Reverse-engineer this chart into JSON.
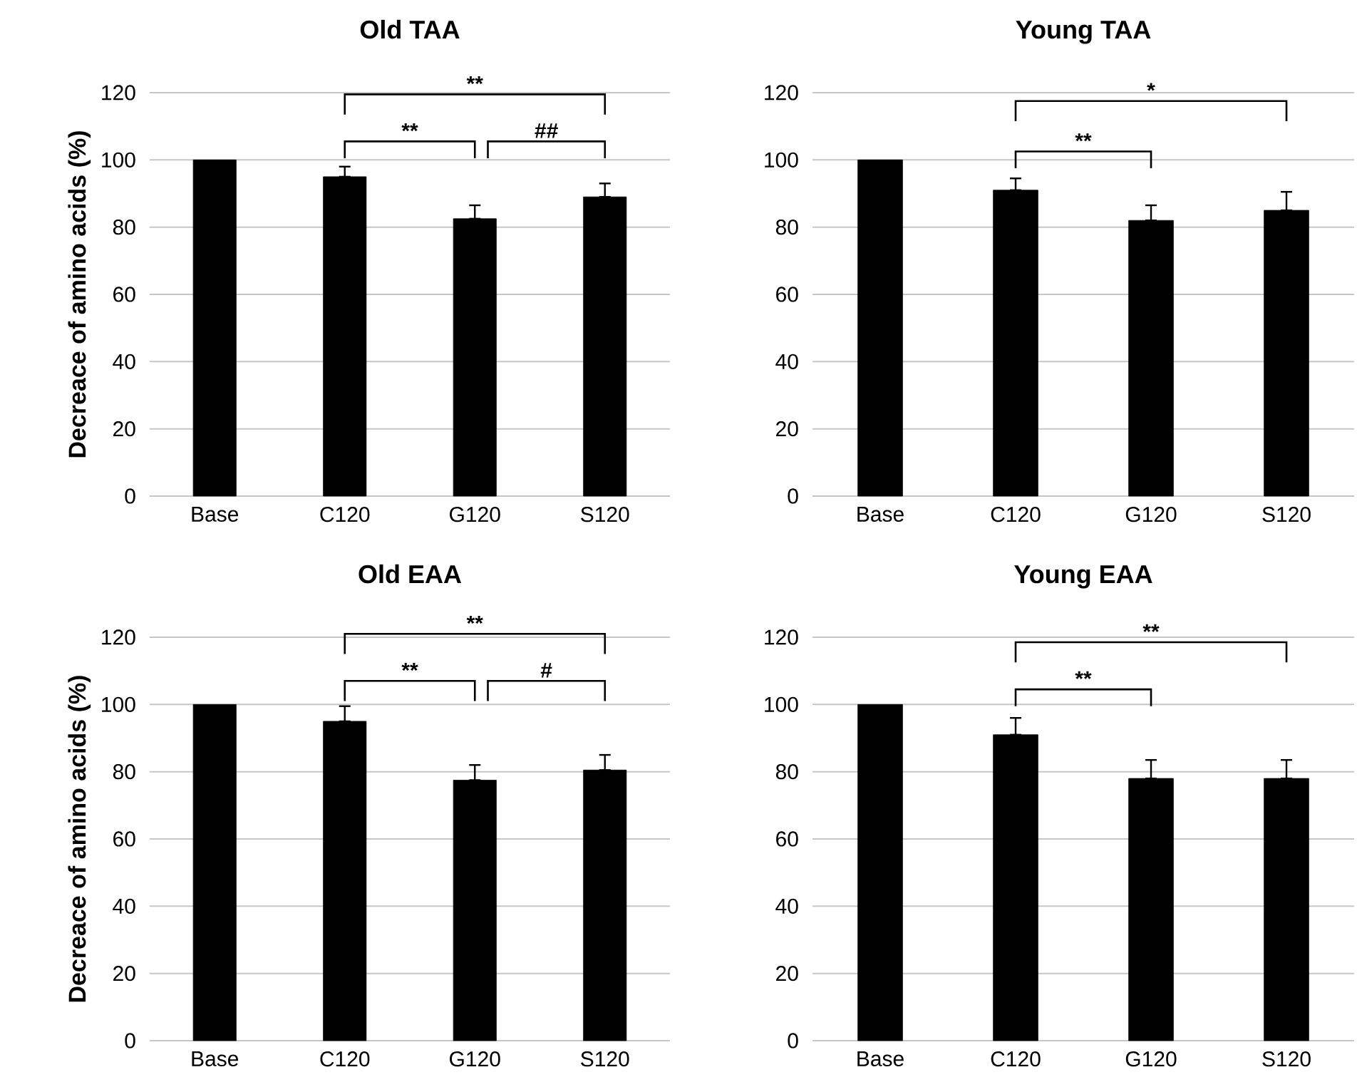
{
  "chart_data": [
    {
      "type": "bar",
      "title": "Old TAA",
      "ylabel": "Decreace of amino acids (%)",
      "categories": [
        "Base",
        "C120",
        "G120",
        "S120"
      ],
      "values": [
        100,
        95,
        82.5,
        89
      ],
      "color": "#000000",
      "errors": [
        null,
        [
          95,
          98
        ],
        [
          82.5,
          86.5
        ],
        [
          89,
          93
        ]
      ],
      "ylim": [
        0,
        120
      ],
      "yticks": [
        0,
        20,
        40,
        60,
        80,
        100,
        120
      ],
      "grid": "y",
      "annotations": [
        "**",
        "**",
        "##"
      ]
    },
    {
      "type": "bar",
      "title": "Young TAA",
      "categories": [
        "Base",
        "C120",
        "G120",
        "S120"
      ],
      "values": [
        100,
        91,
        82,
        85
      ],
      "color": "#000000",
      "errors": [
        null,
        [
          91,
          94.5
        ],
        [
          82,
          86.5
        ],
        [
          85,
          90.5
        ]
      ],
      "ylim": [
        0,
        120
      ],
      "yticks": [
        0,
        20,
        40,
        60,
        80,
        100,
        120
      ],
      "grid": "y",
      "annotations": [
        "*",
        "**"
      ]
    },
    {
      "type": "bar",
      "title": "Old EAA",
      "ylabel": "Decreace of amino acids (%)",
      "categories": [
        "Base",
        "C120",
        "G120",
        "S120"
      ],
      "values": [
        100,
        95,
        77.5,
        80.5
      ],
      "color": "#000000",
      "errors": [
        null,
        [
          95,
          99.5
        ],
        [
          77.5,
          82
        ],
        [
          80.5,
          85
        ]
      ],
      "ylim": [
        0,
        120
      ],
      "yticks": [
        0,
        20,
        40,
        60,
        80,
        100,
        120
      ],
      "grid": "y",
      "annotations": [
        "**",
        "**",
        "#"
      ]
    },
    {
      "type": "bar",
      "title": "Young EAA",
      "categories": [
        "Base",
        "C120",
        "G120",
        "S120"
      ],
      "values": [
        100,
        91,
        78,
        78
      ],
      "color": "#000000",
      "errors": [
        null,
        [
          91,
          96
        ],
        [
          78,
          83.5
        ],
        [
          78,
          83.5
        ]
      ],
      "ylim": [
        0,
        120
      ],
      "yticks": [
        0,
        20,
        40,
        60,
        80,
        100,
        120
      ],
      "grid": "y",
      "annotations": [
        "**",
        "**"
      ]
    }
  ]
}
